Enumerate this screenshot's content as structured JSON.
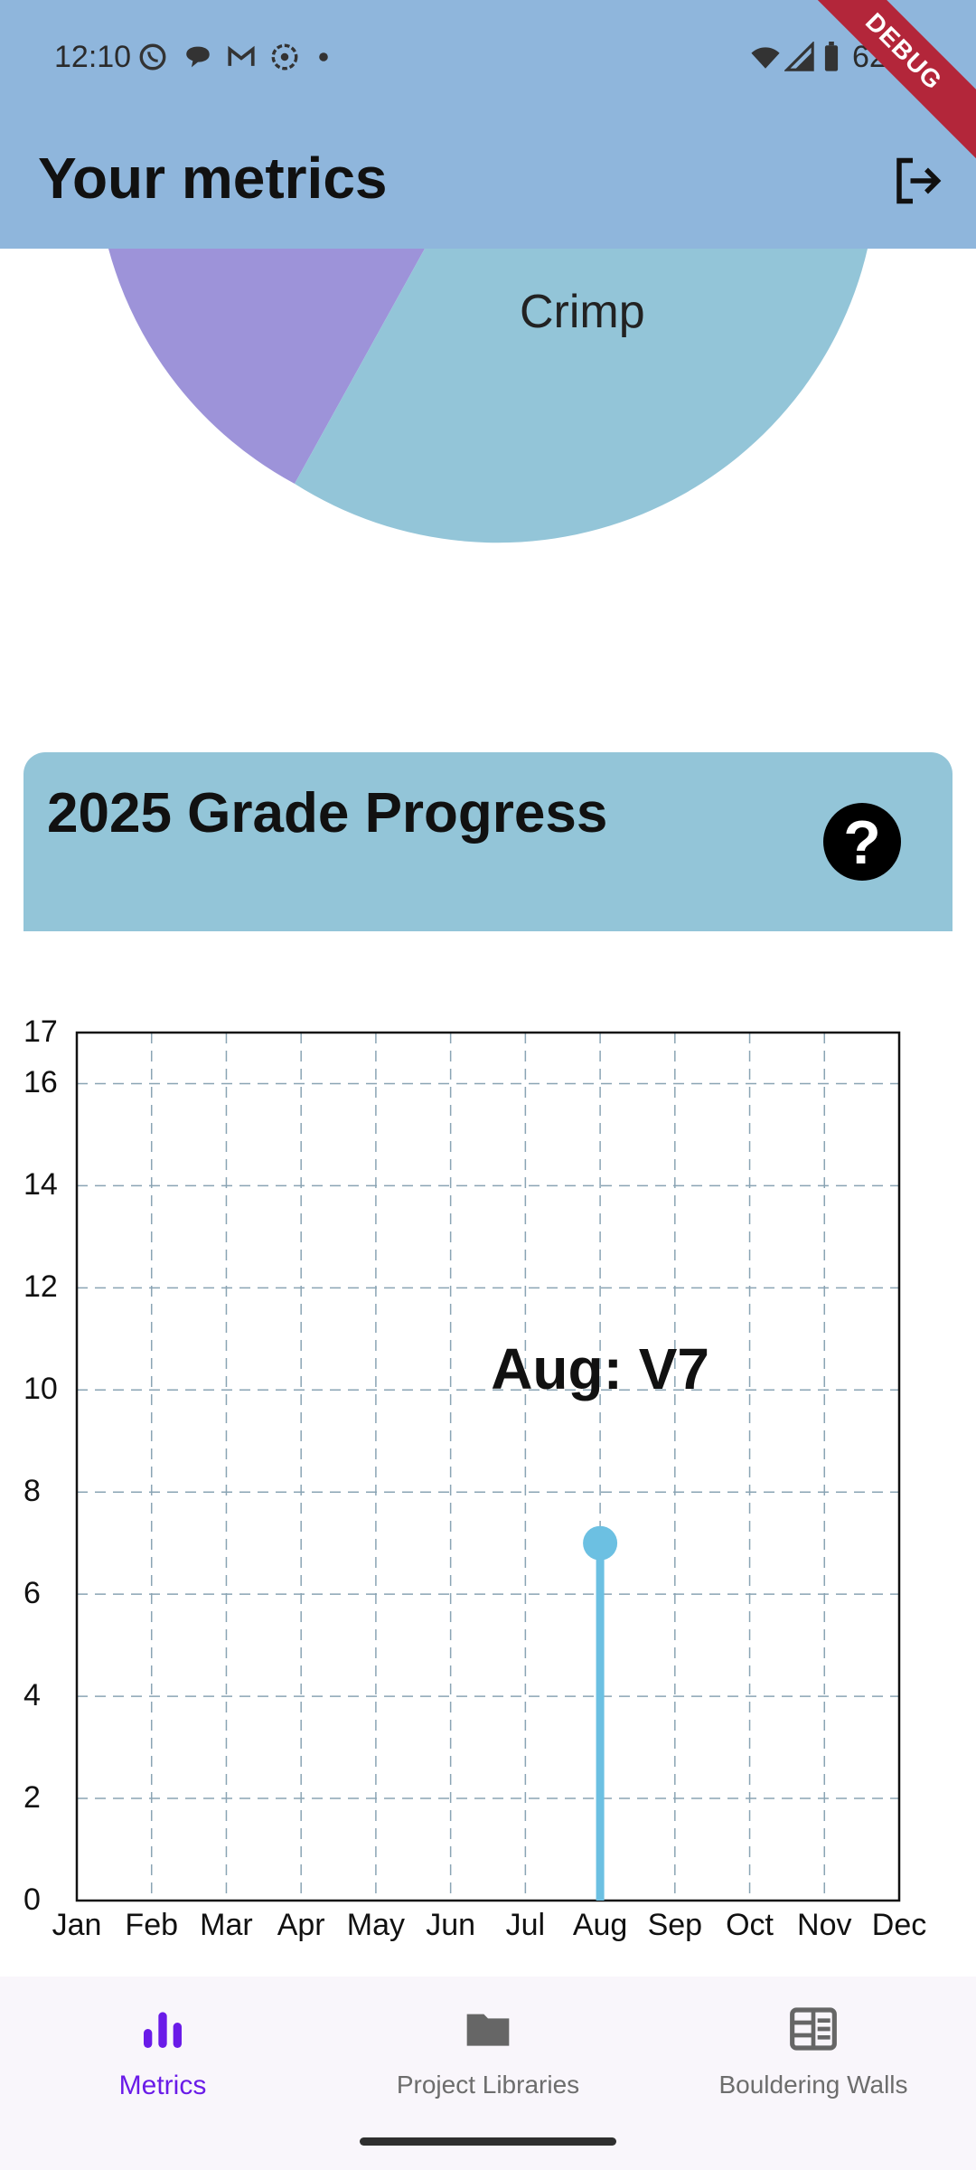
{
  "status_bar": {
    "time": "12:10",
    "battery": "62%",
    "icons": [
      "whatsapp-icon",
      "chat-bubble-icon",
      "gmail-icon",
      "aperture-icon",
      "dot-icon",
      "wifi-icon",
      "signal-icon",
      "battery-icon"
    ]
  },
  "debug_banner": "DEBUG",
  "app_bar": {
    "title": "Your metrics",
    "action_icon": "logout-icon"
  },
  "pie": {
    "visible_label": "Crimp",
    "colors": {
      "purple_slice": "#9d93d9",
      "blue_slice": "#93c5d8"
    }
  },
  "card": {
    "title": "2025 Grade Progress",
    "help_icon": "question-icon",
    "help_glyph": "?"
  },
  "chart_data": {
    "type": "line",
    "categories": [
      "Jan",
      "Feb",
      "Mar",
      "Apr",
      "May",
      "Jun",
      "Jul",
      "Aug",
      "Sep",
      "Oct",
      "Nov",
      "Dec"
    ],
    "values": [
      null,
      null,
      null,
      null,
      null,
      null,
      null,
      7,
      null,
      null,
      null,
      null
    ],
    "ylim": [
      0,
      17
    ],
    "yticks": [
      "0",
      "2",
      "4",
      "6",
      "8",
      "10",
      "12",
      "14",
      "16",
      "17"
    ],
    "annotation": "Aug: V7",
    "grid": true,
    "series_color": "#6cc0e2"
  },
  "bottom_nav": {
    "items": [
      {
        "label": "Metrics",
        "icon": "bar-chart-icon",
        "active": true
      },
      {
        "label": "Project Libraries",
        "icon": "folder-icon",
        "active": false
      },
      {
        "label": "Bouldering Walls",
        "icon": "wall-grid-icon",
        "active": false
      }
    ],
    "colors": {
      "active": "#6a1be8",
      "inactive": "#6d6d6d"
    }
  }
}
